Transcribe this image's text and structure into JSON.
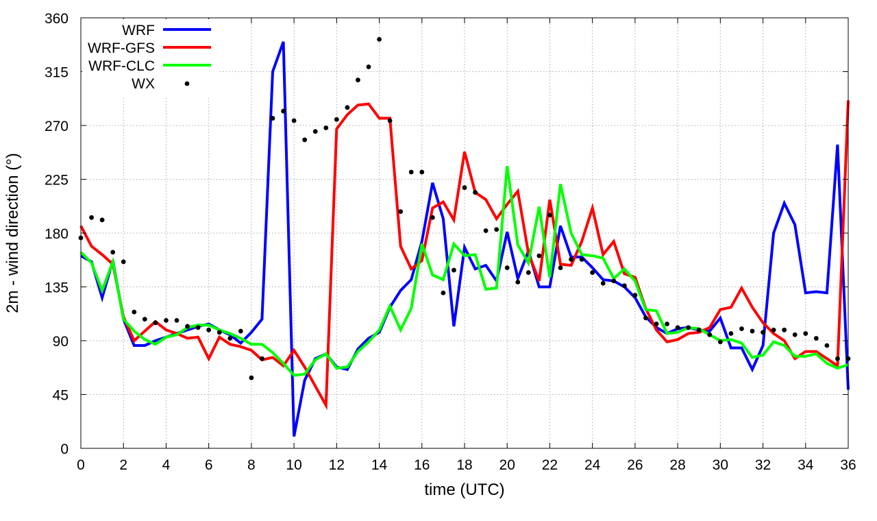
{
  "chart_data": {
    "type": "line",
    "title": "",
    "xlabel": "time (UTC)",
    "ylabel": "2m - wind direction (°)",
    "xlim": [
      0,
      36
    ],
    "ylim": [
      0,
      360
    ],
    "grid": true,
    "legend_position": "top-left",
    "x_ticks": [
      0,
      2,
      4,
      6,
      8,
      10,
      12,
      14,
      16,
      18,
      20,
      22,
      24,
      26,
      28,
      30,
      32,
      34,
      36
    ],
    "y_ticks": [
      0,
      45,
      90,
      135,
      180,
      225,
      270,
      315,
      360
    ],
    "series": [
      {
        "name": "WRF",
        "color": "#0000ff",
        "style": "line",
        "x": [
          0,
          0.5,
          1,
          1.5,
          2,
          2.5,
          3,
          3.5,
          4,
          4.5,
          5,
          5.5,
          6,
          6.5,
          7,
          7.5,
          8,
          8.5,
          9,
          9.5,
          10,
          10.5,
          11,
          11.5,
          12,
          12.5,
          13,
          13.5,
          14,
          14.5,
          15,
          15.5,
          16,
          16.5,
          17,
          17.5,
          18,
          18.5,
          19,
          19.5,
          20,
          20.5,
          21,
          21.5,
          22,
          22.5,
          23,
          23.5,
          24,
          24.5,
          25,
          25.5,
          26,
          26.5,
          27,
          27.5,
          28,
          28.5,
          29,
          29.5,
          30,
          30.5,
          31,
          31.5,
          32,
          32.5,
          33,
          33.5,
          34,
          34.5,
          35,
          35.5,
          36
        ],
        "values": [
          161,
          156,
          126,
          157,
          108,
          86,
          86,
          90,
          93,
          96,
          99,
          102,
          104,
          99,
          95,
          88,
          97,
          108,
          315,
          340,
          10,
          57,
          75,
          79,
          68,
          66,
          83,
          92,
          97,
          118,
          132,
          141,
          173,
          222,
          192,
          102,
          168,
          150,
          153,
          140,
          181,
          142,
          165,
          135,
          135,
          186,
          160,
          160,
          151,
          141,
          140,
          135,
          126,
          110,
          101,
          96,
          100,
          101,
          99,
          98,
          109,
          84,
          84,
          66,
          86,
          180,
          205,
          187,
          130,
          131,
          130,
          254,
          49
        ]
      },
      {
        "name": "WRF-GFS",
        "color": "#ff0000",
        "style": "line",
        "x": [
          0,
          0.5,
          1,
          1.5,
          2,
          2.5,
          3,
          3.5,
          4,
          4.5,
          5,
          5.5,
          6,
          6.5,
          7,
          7.5,
          8,
          8.5,
          9,
          9.5,
          10,
          10.5,
          11,
          11.5,
          12,
          12.5,
          13,
          13.5,
          14,
          14.5,
          15,
          15.5,
          16,
          16.5,
          17,
          17.5,
          18,
          18.5,
          19,
          19.5,
          20,
          20.5,
          21,
          21.5,
          22,
          22.5,
          23,
          23.5,
          24,
          24.5,
          25,
          25.5,
          26,
          26.5,
          27,
          27.5,
          28,
          28.5,
          29,
          29.5,
          30,
          30.5,
          31,
          31.5,
          32,
          32.5,
          33,
          33.5,
          34,
          34.5,
          35,
          35.5,
          36
        ],
        "values": [
          186,
          169,
          162,
          154,
          110,
          90,
          98,
          106,
          99,
          96,
          92,
          93,
          75,
          93,
          87,
          85,
          82,
          74,
          76,
          69,
          82,
          68,
          52,
          36,
          267,
          279,
          287,
          288,
          276,
          276,
          169,
          150,
          157,
          201,
          206,
          191,
          248,
          214,
          208,
          192,
          204,
          215,
          163,
          140,
          208,
          154,
          153,
          173,
          201,
          162,
          173,
          146,
          143,
          117,
          99,
          89,
          91,
          96,
          97,
          101,
          116,
          118,
          134,
          118,
          105,
          96,
          90,
          75,
          81,
          81,
          75,
          69,
          291
        ]
      },
      {
        "name": "WRF-CLC",
        "color": "#00ff00",
        "style": "line",
        "x": [
          0,
          0.5,
          1,
          1.5,
          2,
          2.5,
          3,
          3.5,
          4,
          4.5,
          5,
          5.5,
          6,
          6.5,
          7,
          7.5,
          8,
          8.5,
          9,
          9.5,
          10,
          10.5,
          11,
          11.5,
          12,
          12.5,
          13,
          13.5,
          14,
          14.5,
          15,
          15.5,
          16,
          16.5,
          17,
          17.5,
          18,
          18.5,
          19,
          19.5,
          20,
          20.5,
          21,
          21.5,
          22,
          22.5,
          23,
          23.5,
          24,
          24.5,
          25,
          25.5,
          26,
          26.5,
          27,
          27.5,
          28,
          28.5,
          29,
          29.5,
          30,
          30.5,
          31,
          31.5,
          32,
          32.5,
          33,
          33.5,
          34,
          34.5,
          35,
          35.5,
          36
        ],
        "values": [
          164,
          155,
          132,
          156,
          108,
          98,
          91,
          87,
          93,
          95,
          101,
          103,
          103,
          99,
          96,
          92,
          87,
          87,
          80,
          71,
          61,
          62,
          74,
          79,
          67,
          68,
          81,
          89,
          99,
          119,
          99,
          117,
          171,
          145,
          141,
          171,
          161,
          162,
          133,
          134,
          236,
          170,
          155,
          202,
          143,
          221,
          180,
          162,
          161,
          159,
          142,
          150,
          140,
          116,
          115,
          96,
          97,
          101,
          100,
          95,
          90,
          91,
          88,
          76,
          78,
          89,
          86,
          77,
          77,
          79,
          71,
          67,
          70
        ]
      },
      {
        "name": "WX",
        "color": "#000000",
        "style": "points",
        "x": [
          0,
          0.5,
          1,
          1.5,
          2,
          2.5,
          3,
          3.5,
          4,
          4.5,
          5,
          5.5,
          6,
          6.5,
          7,
          7.5,
          8,
          8.5,
          9,
          9.5,
          10,
          10.5,
          11,
          11.5,
          12,
          12.5,
          13,
          13.5,
          14,
          14.5,
          15,
          15.5,
          16,
          16.5,
          17,
          17.5,
          18,
          18.5,
          19,
          19.5,
          20,
          20.5,
          21,
          21.5,
          22,
          22.5,
          23,
          23.5,
          24,
          24.5,
          25,
          25.5,
          26,
          26.5,
          27,
          27.5,
          28,
          28.5,
          29,
          29.5,
          30,
          30.5,
          31,
          31.5,
          32,
          32.5,
          33,
          33.5,
          34,
          34.5,
          35,
          35.5,
          36
        ],
        "values": [
          176,
          193,
          191,
          164,
          156,
          114,
          108,
          105,
          107,
          107,
          102,
          101,
          99,
          97,
          92,
          98,
          59,
          75,
          276,
          282,
          274,
          258,
          265,
          268,
          275,
          285,
          308,
          319,
          342,
          274,
          198,
          231,
          231,
          193,
          130,
          149,
          218,
          214,
          182,
          183,
          151,
          139,
          147,
          161,
          195,
          151,
          158,
          158,
          147,
          138,
          140,
          136,
          128,
          109,
          104,
          104,
          101,
          101,
          99,
          95,
          89,
          96,
          100,
          98,
          97,
          99,
          99,
          95,
          96,
          92,
          86,
          75,
          75
        ]
      }
    ]
  }
}
